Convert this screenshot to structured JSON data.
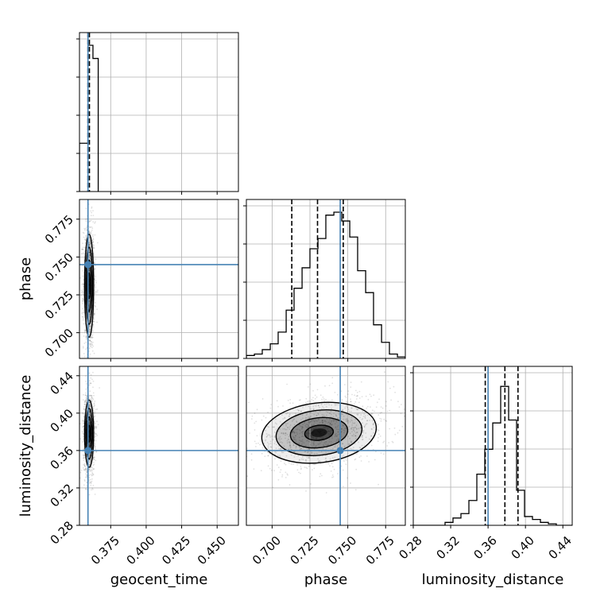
{
  "chart_data": {
    "type": "scatter",
    "subtype": "corner-plot",
    "parameters": [
      "geocent_time",
      "phase",
      "luminosity_distance"
    ],
    "axis_labels": {
      "geocent_time": "geocent_time",
      "phase": "phase",
      "luminosity_distance": "luminosity_distance"
    },
    "ranges": {
      "geocent_time": [
        0.353,
        0.465
      ],
      "phase": [
        0.683,
        0.788
      ],
      "luminosity_distance": [
        0.28,
        0.45
      ]
    },
    "ticks": {
      "geocent_time": [
        0.375,
        0.4,
        0.425,
        0.45
      ],
      "phase": [
        0.7,
        0.725,
        0.75,
        0.775
      ],
      "luminosity_distance": [
        0.28,
        0.32,
        0.36,
        0.4,
        0.44
      ]
    },
    "tick_labels": {
      "geocent_time": [
        "0.375",
        "0.400",
        "0.425",
        "0.450"
      ],
      "phase": [
        "0.700",
        "0.725",
        "0.750",
        "0.775"
      ],
      "luminosity_distance": [
        "0.28",
        "0.32",
        "0.36",
        "0.40",
        "0.44"
      ]
    },
    "grid": true,
    "truths": {
      "geocent_time": 0.359,
      "phase": 0.745,
      "luminosity_distance": 0.36
    },
    "truth_color": "#4682b4",
    "quantiles": {
      "geocent_time": [
        0.359,
        0.359,
        0.36
      ],
      "phase": [
        0.713,
        0.73,
        0.747
      ],
      "luminosity_distance": [
        0.357,
        0.378,
        0.392
      ]
    },
    "histograms": {
      "geocent_time": {
        "bin_edges": [
          0.353,
          0.359,
          0.3625,
          0.3662
        ],
        "counts": [
          0.33,
          1.0,
          0.91
        ]
      },
      "phase": {
        "bin_edges": [
          0.683,
          0.6883,
          0.6935,
          0.6988,
          0.704,
          0.7093,
          0.7145,
          0.7198,
          0.725,
          0.7303,
          0.7355,
          0.7408,
          0.746,
          0.7513,
          0.7565,
          0.7618,
          0.767,
          0.7723,
          0.7775,
          0.7828,
          0.788
        ],
        "counts": [
          0.02,
          0.03,
          0.06,
          0.1,
          0.18,
          0.33,
          0.48,
          0.62,
          0.75,
          0.82,
          0.98,
          1.0,
          0.94,
          0.83,
          0.6,
          0.45,
          0.23,
          0.11,
          0.03,
          0.01
        ]
      },
      "luminosity_distance": {
        "bin_edges": [
          0.28,
          0.2885,
          0.297,
          0.3055,
          0.314,
          0.3225,
          0.331,
          0.3395,
          0.348,
          0.3565,
          0.365,
          0.3735,
          0.382,
          0.3905,
          0.399,
          0.4075,
          0.416,
          0.4245,
          0.433,
          0.4415,
          0.45
        ],
        "counts": [
          0.0,
          0.0,
          0.0,
          0.0,
          0.02,
          0.05,
          0.08,
          0.17,
          0.35,
          0.52,
          0.7,
          0.95,
          0.72,
          0.24,
          0.06,
          0.04,
          0.02,
          0.01,
          0.0,
          0.0
        ]
      }
    },
    "joint_distributions": [
      {
        "x": "geocent_time",
        "y": "phase",
        "center": [
          0.3598,
          0.731
        ],
        "sd": [
          0.0016,
          0.017
        ],
        "levels_sigma": [
          0.5,
          1.0,
          1.5,
          2.0
        ]
      },
      {
        "x": "geocent_time",
        "y": "luminosity_distance",
        "center": [
          0.3598,
          0.378
        ],
        "sd": [
          0.0016,
          0.018
        ],
        "levels_sigma": [
          0.5,
          1.0,
          1.5,
          2.0
        ]
      },
      {
        "x": "phase",
        "y": "luminosity_distance",
        "center": [
          0.731,
          0.379
        ],
        "sd": [
          0.019,
          0.016
        ],
        "correlation": 0.3,
        "levels_sigma": [
          0.5,
          1.0,
          1.5,
          2.0
        ]
      }
    ]
  }
}
